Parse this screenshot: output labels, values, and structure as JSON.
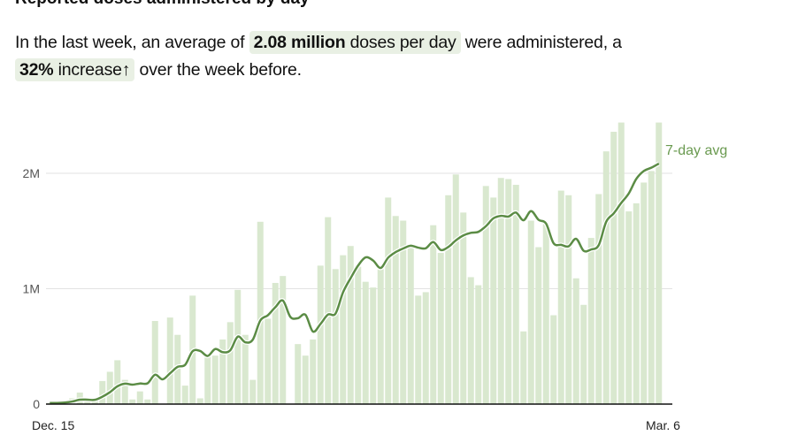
{
  "title": "Reported doses administered by day",
  "summary": {
    "prefix": "In the last week, an average of",
    "avg_value": "2.08 million",
    "avg_suffix": "doses per day",
    "middle": "were administered, a",
    "change_value": "32%",
    "change_word": "increase",
    "change_arrow": "↑",
    "suffix": "over the week before."
  },
  "colors": {
    "bar": "#d9e8cf",
    "line": "#5b8c45",
    "label": "#6a9a50",
    "chip": "#e9f0e4"
  },
  "chart_data": {
    "type": "bar",
    "title": "Reported doses administered by day",
    "x_start": "Dec. 15",
    "x_end": "Mar. 6",
    "xtick_labels": [
      "Dec. 15",
      "Mar. 6"
    ],
    "ytick_labels": [
      "0",
      "1M",
      "2M"
    ],
    "yticks": [
      0,
      1,
      2
    ],
    "ylim": [
      0,
      2.5
    ],
    "units": "millions of doses",
    "grid": true,
    "values": [
      0.01,
      0.01,
      0.02,
      0.05,
      0.1,
      0.04,
      0.03,
      0.2,
      0.28,
      0.38,
      0.21,
      0.04,
      0.11,
      0.04,
      0.72,
      0,
      0.75,
      0.6,
      0.16,
      0.94,
      0.05,
      0.42,
      0.42,
      0.56,
      0.71,
      0.99,
      0.6,
      0.21,
      1.58,
      0.74,
      1.05,
      1.11,
      0,
      0.52,
      0.42,
      0.56,
      1.2,
      1.62,
      1.17,
      1.29,
      1.37,
      1.19,
      1.06,
      1.01,
      1.17,
      1.79,
      1.63,
      1.59,
      1.36,
      0.94,
      0.97,
      1.55,
      1.31,
      1.81,
      1.99,
      1.66,
      1.1,
      1.03,
      1.89,
      1.79,
      1.96,
      1.95,
      1.9,
      0.63,
      1.59,
      1.36,
      1.56,
      0.77,
      1.85,
      1.81,
      1.09,
      0.86,
      1.44,
      1.82,
      2.19,
      2.36,
      2.44,
      1.67,
      1.74,
      1.92,
      2.02,
      2.44
    ],
    "line_series": {
      "name": "7-day avg",
      "type": "rolling-mean",
      "window": 7
    }
  }
}
